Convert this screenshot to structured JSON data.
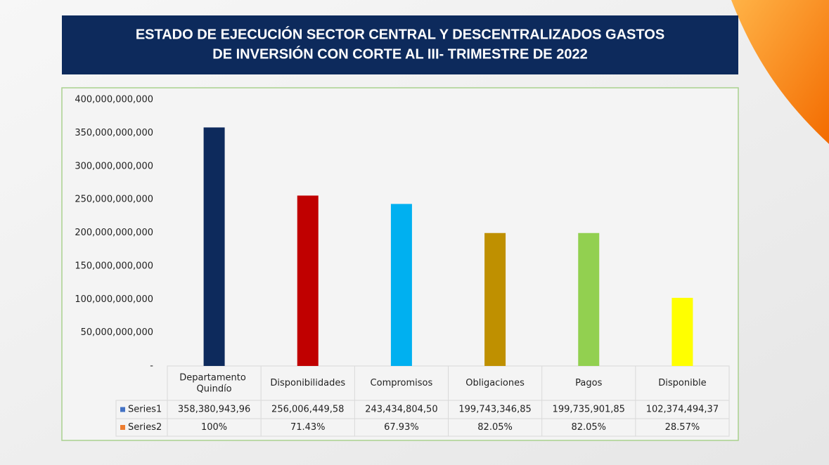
{
  "chart_data": {
    "type": "bar",
    "title": [
      "ESTADO DE EJECUCIÓN SECTOR CENTRAL Y DESCENTRALIZADOS GASTOS",
      "DE INVERSIÓN CON CORTE AL III- TRIMESTRE DE 2022"
    ],
    "categories": [
      "Departamento Quindío",
      "Disponibilidades",
      "Compromisos",
      "Obligaciones",
      "Pagos",
      "Disponible"
    ],
    "colors": [
      "#0d2a5c",
      "#c00000",
      "#00b0f0",
      "#bf9000",
      "#92d050",
      "#ffff00"
    ],
    "series": [
      {
        "name": "Series1",
        "color": "#4472c4",
        "values": [
          358380943960,
          256006449580,
          243434804500,
          199743346850,
          199735901850,
          102374494370
        ],
        "value_labels": [
          "358,380,943,96",
          "256,006,449,58",
          "243,434,804,50",
          "199,743,346,85",
          "199,735,901,85",
          "102,374,494,37"
        ]
      },
      {
        "name": "Series2",
        "color": "#ed7d31",
        "values": [
          100,
          71.43,
          67.93,
          82.05,
          82.05,
          28.57
        ],
        "value_labels": [
          "100%",
          "71.43%",
          "67.93%",
          "82.05%",
          "82.05%",
          "28.57%"
        ]
      }
    ],
    "ylim": [
      0,
      400000000000
    ],
    "yticks": [
      {
        "value": 0,
        "label": "-"
      },
      {
        "value": 50000000000,
        "label": "50,000,000,000"
      },
      {
        "value": 100000000000,
        "label": "100,000,000,000"
      },
      {
        "value": 150000000000,
        "label": "150,000,000,000"
      },
      {
        "value": 200000000000,
        "label": "200,000,000,000"
      },
      {
        "value": 250000000000,
        "label": "250,000,000,000"
      },
      {
        "value": 300000000000,
        "label": "300,000,000,000"
      },
      {
        "value": 350000000000,
        "label": "350,000,000,000"
      },
      {
        "value": 400000000000,
        "label": "400,000,000,000"
      }
    ],
    "grid": false
  }
}
